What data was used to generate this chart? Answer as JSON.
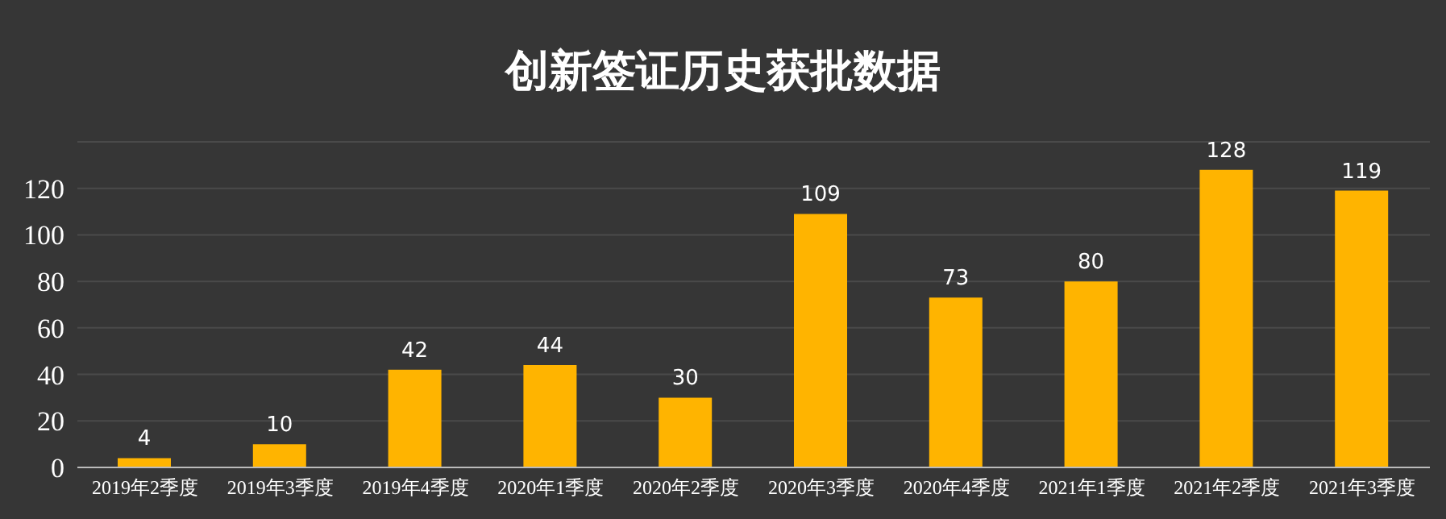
{
  "chart_data": {
    "type": "bar",
    "title": "创新签证历史获批数据",
    "categories": [
      "2019年2季度",
      "2019年3季度",
      "2019年4季度",
      "2020年1季度",
      "2020年2季度",
      "2020年3季度",
      "2020年4季度",
      "2021年1季度",
      "2021年2季度",
      "2021年3季度"
    ],
    "values": [
      4,
      10,
      42,
      44,
      30,
      109,
      73,
      80,
      128,
      119
    ],
    "color": "#ffb400",
    "ylim": [
      0,
      140
    ],
    "yticks": [
      0,
      20,
      40,
      60,
      80,
      100,
      120
    ],
    "grid": "y",
    "data_labels": true
  }
}
